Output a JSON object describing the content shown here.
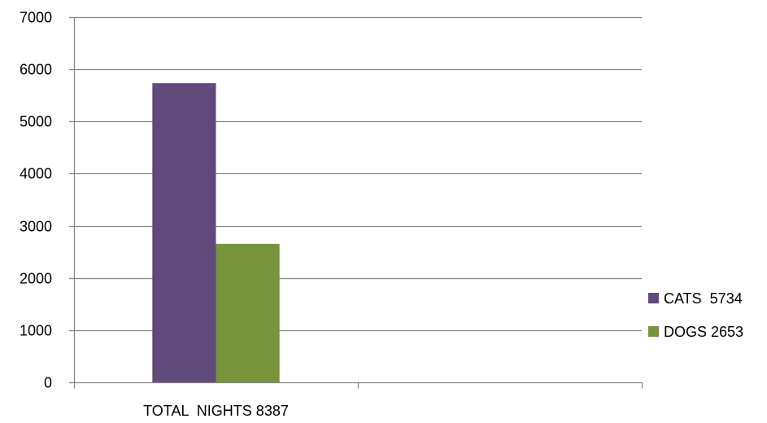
{
  "chart_data": {
    "type": "bar",
    "categories": [
      "TOTAL  NIGHTS 8387",
      ""
    ],
    "series": [
      {
        "name": "CATS  5734",
        "values": [
          5734,
          null
        ],
        "color": "#604A7B"
      },
      {
        "name": "DOGS 2653",
        "values": [
          2653,
          null
        ],
        "color": "#77933C"
      }
    ],
    "title": "",
    "xlabel": "",
    "ylabel": "",
    "ylim": [
      0,
      7000
    ],
    "yticks": [
      "0",
      "1000",
      "2000",
      "3000",
      "4000",
      "5000",
      "6000",
      "7000"
    ],
    "grid": true,
    "legend_position": "right"
  },
  "colors": {
    "gridline": "#868686",
    "axis": "#868686"
  }
}
